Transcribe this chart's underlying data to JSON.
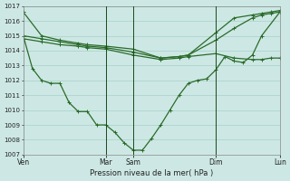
{
  "background_color": "#cde8e4",
  "grid_color": "#a8cfc8",
  "line_color": "#2a6b2a",
  "xlabel": "Pression niveau de la mer( hPa )",
  "ylim": [
    1007,
    1017
  ],
  "yticks": [
    1007,
    1008,
    1009,
    1010,
    1011,
    1012,
    1013,
    1014,
    1015,
    1016,
    1017
  ],
  "xtick_labels": [
    "Ven",
    "Mar",
    "Sam",
    "Dim",
    "Lun"
  ],
  "xtick_positions": [
    0,
    9,
    12,
    21,
    28
  ],
  "vline_positions": [
    9,
    12,
    21
  ],
  "series1_x": [
    0,
    2,
    4,
    6,
    7,
    9,
    12,
    15,
    17,
    18,
    21,
    23,
    25,
    26,
    27,
    28
  ],
  "series1_y": [
    1016.6,
    1015.0,
    1014.7,
    1014.5,
    1014.4,
    1014.3,
    1014.1,
    1013.5,
    1013.6,
    1013.7,
    1015.2,
    1016.2,
    1016.4,
    1016.5,
    1016.6,
    1016.7
  ],
  "series2_x": [
    0,
    2,
    4,
    6,
    7,
    9,
    12,
    15,
    17,
    18,
    21,
    23,
    25,
    26,
    27,
    28
  ],
  "series2_y": [
    1015.0,
    1014.8,
    1014.6,
    1014.4,
    1014.3,
    1014.2,
    1013.9,
    1013.5,
    1013.6,
    1013.7,
    1014.7,
    1015.5,
    1016.2,
    1016.4,
    1016.5,
    1016.6
  ],
  "series3_x": [
    0,
    2,
    4,
    6,
    7,
    9,
    12,
    15,
    17,
    18,
    21,
    23,
    25,
    26,
    27,
    28
  ],
  "series3_y": [
    1014.8,
    1014.6,
    1014.4,
    1014.3,
    1014.2,
    1014.1,
    1013.7,
    1013.4,
    1013.5,
    1013.6,
    1013.8,
    1013.5,
    1013.4,
    1013.4,
    1013.5,
    1013.5
  ],
  "series4_x": [
    0,
    1,
    2,
    3,
    4,
    5,
    6,
    7,
    8,
    9,
    10,
    11,
    12,
    13,
    14,
    15,
    16,
    17,
    18,
    19,
    20,
    21,
    22,
    23,
    24,
    25,
    26,
    28
  ],
  "series4_y": [
    1015.0,
    1012.8,
    1012.0,
    1011.8,
    1011.8,
    1010.5,
    1009.9,
    1009.9,
    1009.0,
    1009.0,
    1008.5,
    1007.8,
    1007.3,
    1007.3,
    1008.1,
    1009.0,
    1010.0,
    1011.0,
    1011.8,
    1012.0,
    1012.1,
    1012.7,
    1013.6,
    1013.3,
    1013.2,
    1013.7,
    1015.0,
    1016.6
  ],
  "marker": "+",
  "markersize": 3,
  "linewidth": 0.9
}
